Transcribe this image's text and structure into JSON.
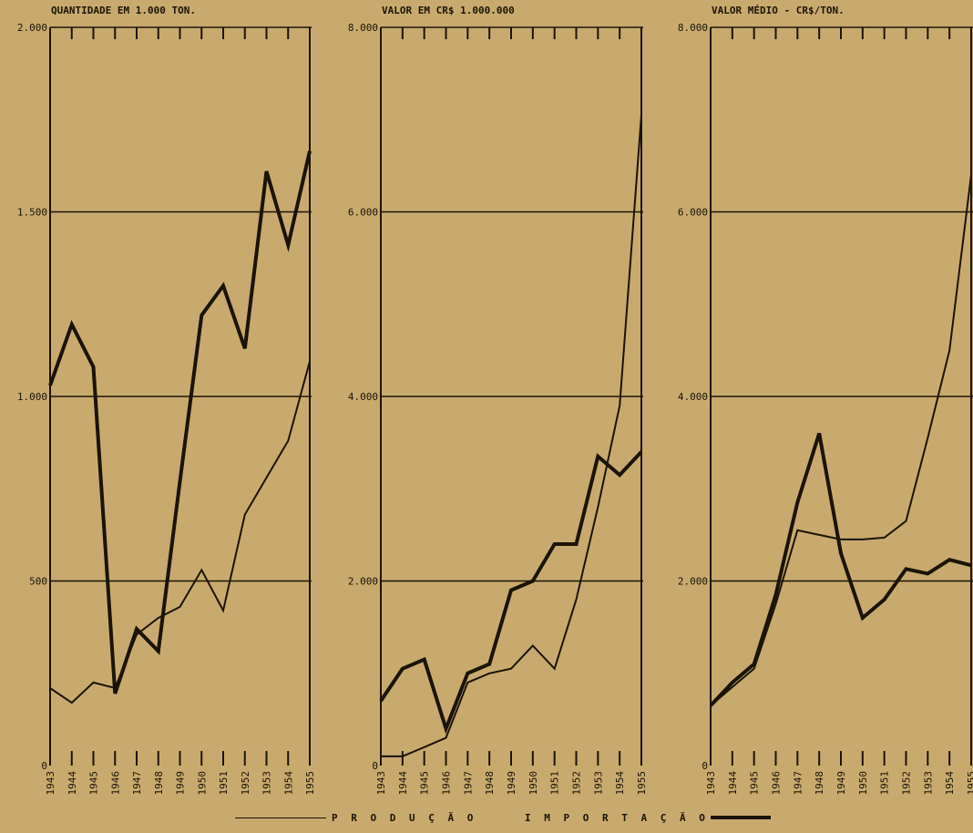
{
  "colors": {
    "background": "#c9aa6e",
    "ink": "#1a1408"
  },
  "legend": {
    "producao": "P R O D U Ç Ã O",
    "importacao": "I M P O R T A Ç Ã O"
  },
  "chart_data": [
    {
      "type": "line",
      "title": "QUANTIDADE EM 1.000 TON.",
      "x": [
        "1943",
        "1944",
        "1945",
        "1946",
        "1947",
        "1948",
        "1949",
        "1950",
        "1951",
        "1952",
        "1953",
        "1954",
        "1955"
      ],
      "ylim": [
        0,
        2000
      ],
      "yticks": [
        0,
        500,
        1000,
        1500,
        2000
      ],
      "ytick_labels": [
        "0",
        "500",
        "1.000",
        "1.500",
        "2.000"
      ],
      "series": [
        {
          "name": "PRODUÇÃO",
          "values": [
            210,
            170,
            225,
            210,
            355,
            400,
            430,
            530,
            420,
            680,
            780,
            880,
            1095
          ]
        },
        {
          "name": "IMPORTAÇÃO",
          "values": [
            1030,
            1195,
            1080,
            195,
            370,
            310,
            770,
            1220,
            1300,
            1130,
            1610,
            1410,
            1665
          ]
        }
      ]
    },
    {
      "type": "line",
      "title": "VALOR EM CR$ 1.000.000",
      "x": [
        "1943",
        "1944",
        "1945",
        "1946",
        "1947",
        "1948",
        "1949",
        "1950",
        "1951",
        "1952",
        "1953",
        "1954",
        "1955"
      ],
      "ylim": [
        0,
        8000
      ],
      "yticks": [
        0,
        2000,
        4000,
        6000,
        8000
      ],
      "ytick_labels": [
        "0",
        "2.000",
        "4.000",
        "6.000",
        "8.000"
      ],
      "series": [
        {
          "name": "PRODUÇÃO",
          "values": [
            100,
            100,
            200,
            300,
            900,
            1000,
            1050,
            1300,
            1050,
            1800,
            2800,
            3900,
            7050
          ]
        },
        {
          "name": "IMPORTAÇÃO",
          "values": [
            700,
            1050,
            1150,
            400,
            1000,
            1100,
            1900,
            2000,
            2400,
            2400,
            3350,
            3150,
            3400
          ]
        }
      ]
    },
    {
      "type": "line",
      "title": "VALOR MÉDIO - CR$/TON.",
      "x": [
        "1943",
        "1944",
        "1945",
        "1946",
        "1947",
        "1948",
        "1949",
        "1950",
        "1951",
        "1952",
        "1953",
        "1954",
        "1955"
      ],
      "ylim": [
        0,
        8000
      ],
      "yticks": [
        0,
        2000,
        4000,
        6000,
        8000
      ],
      "ytick_labels": [
        "0",
        "2.000",
        "4.000",
        "6.000",
        "8.000"
      ],
      "series": [
        {
          "name": "PRODUÇÃO",
          "values": [
            650,
            850,
            1050,
            1750,
            2550,
            2500,
            2450,
            2450,
            2470,
            2650,
            3550,
            4500,
            6400
          ]
        },
        {
          "name": "IMPORTAÇÃO",
          "values": [
            650,
            900,
            1100,
            1850,
            2850,
            3600,
            2300,
            1600,
            1800,
            2130,
            2080,
            2230,
            2170
          ]
        }
      ]
    }
  ]
}
